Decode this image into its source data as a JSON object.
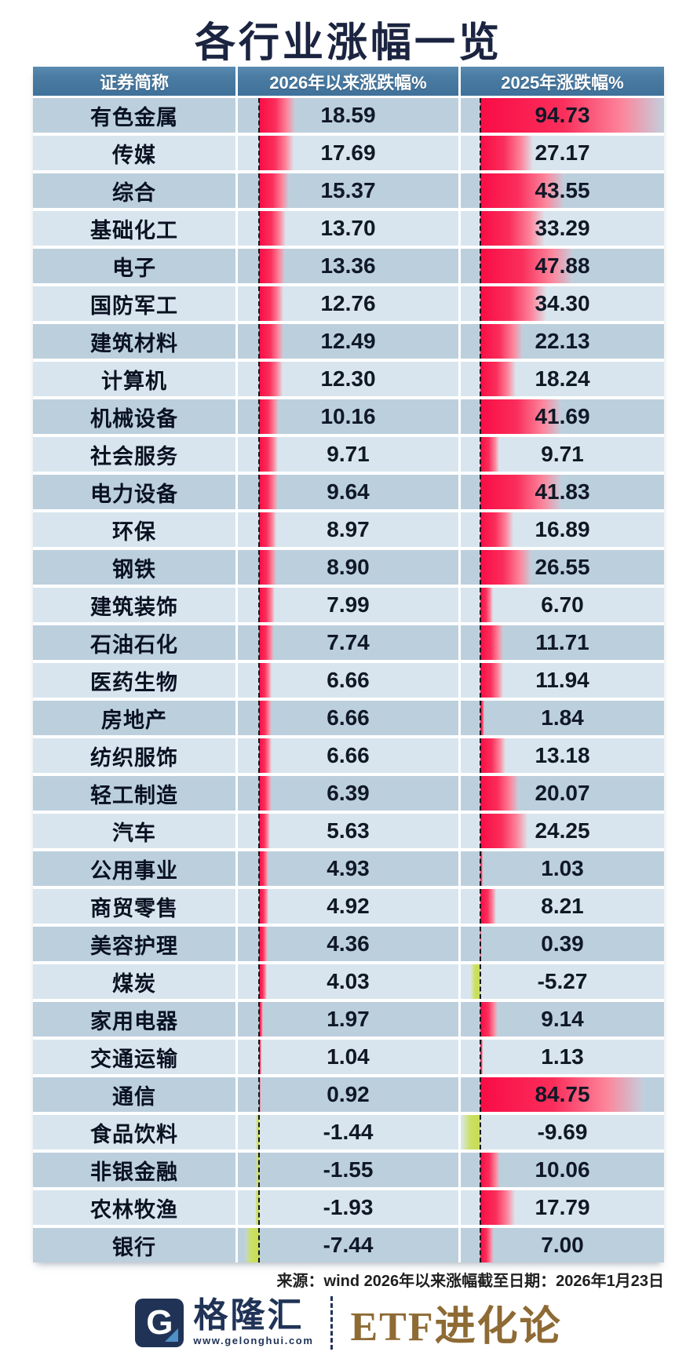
{
  "title": "各行业涨幅一览",
  "table": {
    "headers": [
      "证券简称",
      "2026年以来涨跌幅%",
      "2025年涨跌幅%"
    ],
    "rows": [
      {
        "name": "有色金属",
        "v2026": "18.59",
        "v2025": "94.73"
      },
      {
        "name": "传媒",
        "v2026": "17.69",
        "v2025": "27.17"
      },
      {
        "name": "综合",
        "v2026": "15.37",
        "v2025": "43.55"
      },
      {
        "name": "基础化工",
        "v2026": "13.70",
        "v2025": "33.29"
      },
      {
        "name": "电子",
        "v2026": "13.36",
        "v2025": "47.88"
      },
      {
        "name": "国防军工",
        "v2026": "12.76",
        "v2025": "34.30"
      },
      {
        "name": "建筑材料",
        "v2026": "12.49",
        "v2025": "22.13"
      },
      {
        "name": "计算机",
        "v2026": "12.30",
        "v2025": "18.24"
      },
      {
        "name": "机械设备",
        "v2026": "10.16",
        "v2025": "41.69"
      },
      {
        "name": "社会服务",
        "v2026": "9.71",
        "v2025": "9.71"
      },
      {
        "name": "电力设备",
        "v2026": "9.64",
        "v2025": "41.83"
      },
      {
        "name": "环保",
        "v2026": "8.97",
        "v2025": "16.89"
      },
      {
        "name": "钢铁",
        "v2026": "8.90",
        "v2025": "26.55"
      },
      {
        "name": "建筑装饰",
        "v2026": "7.99",
        "v2025": "6.70"
      },
      {
        "name": "石油石化",
        "v2026": "7.74",
        "v2025": "11.71"
      },
      {
        "name": "医药生物",
        "v2026": "6.66",
        "v2025": "11.94"
      },
      {
        "name": "房地产",
        "v2026": "6.66",
        "v2025": "1.84"
      },
      {
        "name": "纺织服饰",
        "v2026": "6.66",
        "v2025": "13.18"
      },
      {
        "name": "轻工制造",
        "v2026": "6.39",
        "v2025": "20.07"
      },
      {
        "name": "汽车",
        "v2026": "5.63",
        "v2025": "24.25"
      },
      {
        "name": "公用事业",
        "v2026": "4.93",
        "v2025": "1.03"
      },
      {
        "name": "商贸零售",
        "v2026": "4.92",
        "v2025": "8.21"
      },
      {
        "name": "美容护理",
        "v2026": "4.36",
        "v2025": "0.39"
      },
      {
        "name": "煤炭",
        "v2026": "4.03",
        "v2025": "-5.27"
      },
      {
        "name": "家用电器",
        "v2026": "1.97",
        "v2025": "9.14"
      },
      {
        "name": "交通运输",
        "v2026": "1.04",
        "v2025": "1.13"
      },
      {
        "name": "通信",
        "v2026": "0.92",
        "v2025": "84.75"
      },
      {
        "name": "食品饮料",
        "v2026": "-1.44",
        "v2025": "-9.69"
      },
      {
        "name": "非银金融",
        "v2026": "-1.55",
        "v2025": "10.06"
      },
      {
        "name": "农林牧渔",
        "v2026": "-1.93",
        "v2025": "17.79"
      },
      {
        "name": "银行",
        "v2026": "-7.44",
        "v2025": "7.00"
      }
    ]
  },
  "footer": {
    "source": "来源：wind 2026年以来涨幅截至日期：2026年1月23日"
  },
  "branding": {
    "logo_letter": "G",
    "logo_text": "格隆汇",
    "logo_url": "www.gelonghui.com",
    "partner": "ETF进化论"
  },
  "colors": {
    "title_navy": "#1b2440",
    "header_bg": "#4a7ca3",
    "row_dark": "#bccfdd",
    "row_light": "#d8e5ee",
    "positive_bar": "#f90c45",
    "negative_bar": "#c6dc52",
    "brand_navy": "#203357",
    "brand_bronze": "#8e6a34"
  },
  "chart_data": {
    "type": "bar",
    "orientation": "horizontal",
    "title": "各行业涨幅一览",
    "categories": [
      "有色金属",
      "传媒",
      "综合",
      "基础化工",
      "电子",
      "国防军工",
      "建筑材料",
      "计算机",
      "机械设备",
      "社会服务",
      "电力设备",
      "环保",
      "钢铁",
      "建筑装饰",
      "石油石化",
      "医药生物",
      "房地产",
      "纺织服饰",
      "轻工制造",
      "汽车",
      "公用事业",
      "商贸零售",
      "美容护理",
      "煤炭",
      "家用电器",
      "交通运输",
      "通信",
      "食品饮料",
      "非银金融",
      "农林牧渔",
      "银行"
    ],
    "series": [
      {
        "name": "2026年以来涨跌幅%",
        "values": [
          18.59,
          17.69,
          15.37,
          13.7,
          13.36,
          12.76,
          12.49,
          12.3,
          10.16,
          9.71,
          9.64,
          8.97,
          8.9,
          7.99,
          7.74,
          6.66,
          6.66,
          6.66,
          6.39,
          5.63,
          4.93,
          4.92,
          4.36,
          4.03,
          1.97,
          1.04,
          0.92,
          -1.44,
          -1.55,
          -1.93,
          -7.44
        ]
      },
      {
        "name": "2025年涨跌幅%",
        "values": [
          94.73,
          27.17,
          43.55,
          33.29,
          47.88,
          34.3,
          22.13,
          18.24,
          41.69,
          9.71,
          41.83,
          16.89,
          26.55,
          6.7,
          11.71,
          11.94,
          1.84,
          13.18,
          20.07,
          24.25,
          1.03,
          8.21,
          0.39,
          -5.27,
          9.14,
          1.13,
          84.75,
          -9.69,
          10.06,
          17.79,
          7.0
        ]
      }
    ],
    "value_axis_range": [
      -10,
      95
    ],
    "positive_color": "#f90c45",
    "negative_color": "#c6dc52",
    "grid": false,
    "legend_position": "column-headers"
  }
}
